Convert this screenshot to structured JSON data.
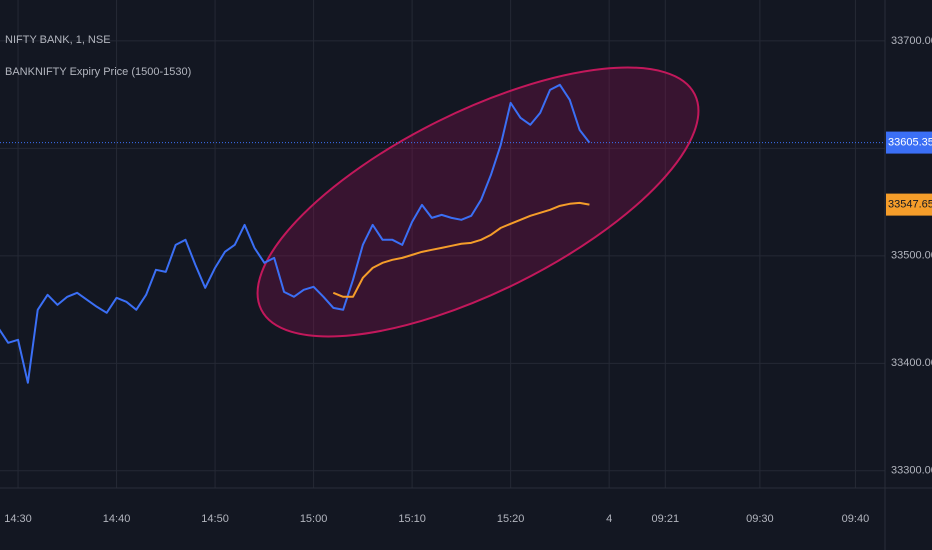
{
  "chart_data": {
    "type": "line",
    "grid": true,
    "background": "#131722",
    "xlim": [
      -1.83,
      88
    ],
    "ylim": [
      33284,
      33738
    ],
    "xticks": [
      {
        "value": 0,
        "label": "14:30"
      },
      {
        "value": 10,
        "label": "14:40"
      },
      {
        "value": 20,
        "label": "14:50"
      },
      {
        "value": 30,
        "label": "15:00"
      },
      {
        "value": 40,
        "label": "15:10"
      },
      {
        "value": 50,
        "label": "15:20"
      },
      {
        "value": 60,
        "label": "4"
      },
      {
        "value": 65.7,
        "label": "09:21"
      },
      {
        "value": 75.3,
        "label": "09:30"
      },
      {
        "value": 85,
        "label": "09:40"
      }
    ],
    "yticks": [
      {
        "value": 33300,
        "label": "33300.00"
      },
      {
        "value": 33400,
        "label": "33400.00"
      },
      {
        "value": 33500,
        "label": "33500.00"
      },
      {
        "value": 33600,
        "label": "33600.00"
      },
      {
        "value": 33700,
        "label": "33700.00"
      }
    ],
    "series": [
      {
        "name": "NIFTY BANK, 1, NSE",
        "color": "#3b6ff5",
        "x": [
          -2,
          -1,
          0,
          1,
          2,
          3,
          4,
          5,
          6,
          7,
          8,
          9,
          10,
          11,
          12,
          13,
          14,
          15,
          16,
          17,
          18,
          19,
          20,
          21,
          22,
          23,
          24,
          25,
          26,
          27,
          28,
          29,
          30,
          31,
          32,
          33,
          34,
          35,
          36,
          37,
          38,
          39,
          40,
          41,
          42,
          43,
          44,
          45,
          46,
          47,
          48,
          49,
          50,
          51,
          52,
          53,
          54,
          55,
          56,
          57,
          58
        ],
        "values": [
          33433,
          33419.1,
          33421.9,
          33381.9,
          33449.8,
          33463.7,
          33454.4,
          33461.9,
          33465.6,
          33459.1,
          33452.6,
          33447,
          33460.9,
          33457.2,
          33449.8,
          33463.7,
          33487,
          33485.1,
          33510.2,
          33514.9,
          33491.6,
          33470.2,
          33488.8,
          33503.7,
          33510.2,
          33528.8,
          33507.4,
          33493.5,
          33498.1,
          33466.5,
          33461.9,
          33468.4,
          33471.2,
          33461.9,
          33451.6,
          33449.8,
          33477.7,
          33510.2,
          33528.8,
          33514.9,
          33514.9,
          33510.2,
          33531.6,
          33547.4,
          33535.3,
          33538.1,
          33535.3,
          33533.5,
          33537.2,
          33552.1,
          33575.3,
          33603.3,
          33642.3,
          33628.4,
          33621.9,
          33633,
          33654.4,
          33659.1,
          33645.1,
          33617.2,
          33605.35
        ]
      },
      {
        "name": "BANKNIFTY Expiry Price (1500-1530)",
        "color": "#f59d2a",
        "x": [
          32,
          33,
          34,
          35,
          36,
          37,
          38,
          39,
          40,
          41,
          42,
          43,
          44,
          45,
          46,
          47,
          48,
          49,
          50,
          51,
          52,
          53,
          54,
          55,
          56,
          57,
          58
        ],
        "values": [
          33465.6,
          33461.9,
          33461.9,
          33479.5,
          33488.8,
          33493.5,
          33496.3,
          33498.1,
          33500.9,
          33503.7,
          33505.6,
          33507.4,
          33509.3,
          33511.2,
          33512.1,
          33514.9,
          33519.5,
          33526,
          33529.8,
          33533.5,
          33537.2,
          33540,
          33542.8,
          33546.5,
          33548.4,
          33549.3,
          33547.65
        ]
      }
    ]
  }
}
